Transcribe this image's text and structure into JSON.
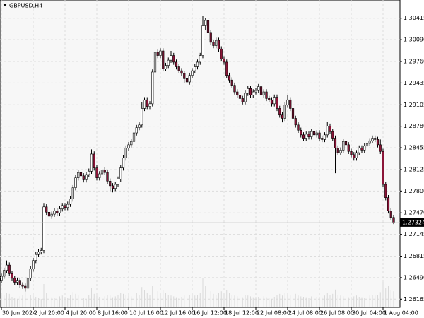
{
  "chart_data": {
    "type": "candlestick",
    "title": "GBPUSD,H4",
    "last_price": 1.27324,
    "ylim": [
      1.2604,
      1.3069
    ],
    "yticks": [
      1.30415,
      {
        "value": 1.3009,
        "label": "1.30090"
      },
      {
        "value": 1.2976,
        "label": "1.29760"
      },
      1.29435,
      1.29105,
      {
        "value": 1.2878,
        "label": "1.28780"
      },
      1.28455,
      1.28125,
      {
        "value": 1.278,
        "label": "1.27800"
      },
      {
        "value": 1.2747,
        "label": "1.27470"
      },
      1.27145,
      1.26815,
      {
        "value": 1.2649,
        "label": "1.26490"
      },
      1.26165
    ],
    "xticks": [
      {
        "value": 0,
        "label": "30 Jun 2024"
      },
      {
        "value": 12,
        "label": "2 Jul 20:00"
      },
      {
        "value": 24,
        "label": "4 Jul 20:00"
      },
      {
        "value": 36,
        "label": "8 Jul 16:00"
      },
      {
        "value": 48,
        "label": "10 Jul 16:00"
      },
      {
        "value": 60,
        "label": "12 Jul 16:00"
      },
      {
        "value": 72,
        "label": "16 Jul 12:00"
      },
      {
        "value": 84,
        "label": "18 Jul 12:00"
      },
      {
        "value": 96,
        "label": "22 Jul 08:00"
      },
      {
        "value": 108,
        "label": "24 Jul 08:00"
      },
      {
        "value": 120,
        "label": "26 Jul 08:00"
      },
      {
        "value": 132,
        "label": "30 Jul 04:00"
      },
      {
        "value": 144,
        "label": "1 Aug 04:00"
      }
    ],
    "up_color": "#ffffff",
    "down_color": "#8b1538",
    "outline": "#000000",
    "volume_color": "#d9d9d9",
    "grid": true,
    "vlim": [
      0,
      100
    ],
    "ohlc": [
      [
        1.2645,
        1.2655,
        1.2641,
        1.2651
      ],
      [
        1.2651,
        1.2664,
        1.2647,
        1.266
      ],
      [
        1.266,
        1.2675,
        1.2656,
        1.2668
      ],
      [
        1.2668,
        1.2672,
        1.2651,
        1.2655
      ],
      [
        1.2655,
        1.2659,
        1.2644,
        1.2648
      ],
      [
        1.2648,
        1.2652,
        1.2638,
        1.2642
      ],
      [
        1.2642,
        1.2649,
        1.2638,
        1.2645
      ],
      [
        1.2645,
        1.2649,
        1.2634,
        1.2638
      ],
      [
        1.2638,
        1.2642,
        1.2632,
        1.2636
      ],
      [
        1.2636,
        1.264,
        1.2628,
        1.2633
      ],
      [
        1.2633,
        1.2652,
        1.2629,
        1.2648
      ],
      [
        1.2648,
        1.2666,
        1.2644,
        1.2662
      ],
      [
        1.2662,
        1.2679,
        1.2658,
        1.2675
      ],
      [
        1.2675,
        1.2688,
        1.2671,
        1.2684
      ],
      [
        1.2684,
        1.2692,
        1.268,
        1.2688
      ],
      [
        1.2688,
        1.2694,
        1.2684,
        1.269
      ],
      [
        1.269,
        1.2762,
        1.2686,
        1.2756
      ],
      [
        1.2756,
        1.276,
        1.2744,
        1.2748
      ],
      [
        1.2748,
        1.2752,
        1.2738,
        1.2742
      ],
      [
        1.2742,
        1.2749,
        1.2738,
        1.2745
      ],
      [
        1.2745,
        1.2754,
        1.2741,
        1.275
      ],
      [
        1.275,
        1.2754,
        1.2743,
        1.2747
      ],
      [
        1.2747,
        1.2757,
        1.2743,
        1.2753
      ],
      [
        1.2753,
        1.2762,
        1.2749,
        1.2758
      ],
      [
        1.2758,
        1.2762,
        1.2751,
        1.2755
      ],
      [
        1.2755,
        1.2764,
        1.2751,
        1.276
      ],
      [
        1.276,
        1.2772,
        1.2756,
        1.2768
      ],
      [
        1.2768,
        1.2789,
        1.2764,
        1.2785
      ],
      [
        1.2785,
        1.2804,
        1.2781,
        1.28
      ],
      [
        1.28,
        1.2812,
        1.2796,
        1.2808
      ],
      [
        1.2808,
        1.2812,
        1.2799,
        1.2803
      ],
      [
        1.2803,
        1.2807,
        1.2793,
        1.2797
      ],
      [
        1.2797,
        1.2809,
        1.2793,
        1.2805
      ],
      [
        1.2805,
        1.2814,
        1.2801,
        1.281
      ],
      [
        1.281,
        1.2843,
        1.2806,
        1.2836
      ],
      [
        1.2836,
        1.284,
        1.2811,
        1.2815
      ],
      [
        1.2815,
        1.2819,
        1.2796,
        1.28
      ],
      [
        1.28,
        1.281,
        1.2796,
        1.2806
      ],
      [
        1.2806,
        1.2816,
        1.2802,
        1.2812
      ],
      [
        1.2812,
        1.2816,
        1.2804,
        1.2808
      ],
      [
        1.2808,
        1.2812,
        1.2791,
        1.2795
      ],
      [
        1.2795,
        1.2799,
        1.278,
        1.2788
      ],
      [
        1.2788,
        1.2792,
        1.2778,
        1.2784
      ],
      [
        1.2784,
        1.2794,
        1.278,
        1.279
      ],
      [
        1.279,
        1.2802,
        1.2786,
        1.2798
      ],
      [
        1.2798,
        1.2819,
        1.2794,
        1.2815
      ],
      [
        1.2815,
        1.2834,
        1.2811,
        1.283
      ],
      [
        1.283,
        1.2849,
        1.2826,
        1.2845
      ],
      [
        1.2845,
        1.2854,
        1.2841,
        1.285
      ],
      [
        1.285,
        1.2859,
        1.2846,
        1.2855
      ],
      [
        1.2855,
        1.2872,
        1.2851,
        1.2868
      ],
      [
        1.2868,
        1.288,
        1.2864,
        1.2876
      ],
      [
        1.2876,
        1.2884,
        1.2872,
        1.288
      ],
      [
        1.288,
        1.2915,
        1.2876,
        1.2905
      ],
      [
        1.2905,
        1.2922,
        1.2901,
        1.2918
      ],
      [
        1.2918,
        1.2922,
        1.2904,
        1.2908
      ],
      [
        1.2908,
        1.2916,
        1.2904,
        1.2912
      ],
      [
        1.2912,
        1.2964,
        1.2908,
        1.296
      ],
      [
        1.296,
        1.2994,
        1.2956,
        1.299
      ],
      [
        1.299,
        1.2994,
        1.2981,
        1.2985
      ],
      [
        1.2985,
        1.2996,
        1.2981,
        1.2992
      ],
      [
        1.2992,
        1.2996,
        1.2961,
        1.2965
      ],
      [
        1.2965,
        1.2974,
        1.2961,
        1.297
      ],
      [
        1.297,
        1.2982,
        1.2966,
        1.2978
      ],
      [
        1.2978,
        1.2992,
        1.2974,
        1.2985
      ],
      [
        1.2985,
        1.2989,
        1.2971,
        1.2975
      ],
      [
        1.2975,
        1.2979,
        1.2964,
        1.2968
      ],
      [
        1.2968,
        1.2972,
        1.2958,
        1.2962
      ],
      [
        1.2962,
        1.2966,
        1.2954,
        1.2958
      ],
      [
        1.2958,
        1.2962,
        1.2944,
        1.295
      ],
      [
        1.295,
        1.2954,
        1.294,
        1.2945
      ],
      [
        1.2945,
        1.2959,
        1.2941,
        1.2955
      ],
      [
        1.2955,
        1.2966,
        1.2951,
        1.2962
      ],
      [
        1.2962,
        1.2972,
        1.2958,
        1.2968
      ],
      [
        1.2968,
        1.2979,
        1.2964,
        1.2975
      ],
      [
        1.2975,
        1.2989,
        1.2971,
        1.2985
      ],
      [
        1.2985,
        1.3045,
        1.2981,
        1.303
      ],
      [
        1.303,
        1.3042,
        1.3024,
        1.3038
      ],
      [
        1.3038,
        1.3042,
        1.3016,
        1.302
      ],
      [
        1.302,
        1.3024,
        1.3001,
        1.3005
      ],
      [
        1.3005,
        1.3009,
        1.2996,
        1.3
      ],
      [
        1.3,
        1.3012,
        1.2996,
        1.3008
      ],
      [
        1.3008,
        1.3012,
        1.2991,
        1.2995
      ],
      [
        1.2995,
        1.2999,
        1.2976,
        1.298
      ],
      [
        1.298,
        1.2984,
        1.2971,
        1.2975
      ],
      [
        1.2975,
        1.2979,
        1.2951,
        1.2955
      ],
      [
        1.2955,
        1.2959,
        1.2944,
        1.2948
      ],
      [
        1.2948,
        1.2952,
        1.2936,
        1.294
      ],
      [
        1.294,
        1.2944,
        1.2926,
        1.293
      ],
      [
        1.293,
        1.2934,
        1.2921,
        1.2925
      ],
      [
        1.2925,
        1.2929,
        1.2916,
        1.292
      ],
      [
        1.292,
        1.2924,
        1.2911,
        1.2915
      ],
      [
        1.2915,
        1.2932,
        1.2911,
        1.2928
      ],
      [
        1.2928,
        1.2939,
        1.2924,
        1.2935
      ],
      [
        1.2935,
        1.2939,
        1.2921,
        1.2925
      ],
      [
        1.2925,
        1.2934,
        1.2921,
        1.293
      ],
      [
        1.293,
        1.2936,
        1.2926,
        1.2932
      ],
      [
        1.2932,
        1.2942,
        1.2928,
        1.2938
      ],
      [
        1.2938,
        1.2942,
        1.2921,
        1.2925
      ],
      [
        1.2925,
        1.2934,
        1.2921,
        1.293
      ],
      [
        1.293,
        1.2934,
        1.2916,
        1.292
      ],
      [
        1.292,
        1.2924,
        1.2914,
        1.2918
      ],
      [
        1.2918,
        1.2922,
        1.2908,
        1.2912
      ],
      [
        1.2912,
        1.2926,
        1.2908,
        1.2922
      ],
      [
        1.2922,
        1.2926,
        1.2901,
        1.2905
      ],
      [
        1.2905,
        1.2909,
        1.2891,
        1.2895
      ],
      [
        1.2895,
        1.2899,
        1.2884,
        1.289
      ],
      [
        1.289,
        1.2914,
        1.2886,
        1.291
      ],
      [
        1.291,
        1.2925,
        1.2906,
        1.2918
      ],
      [
        1.2918,
        1.2922,
        1.2901,
        1.2905
      ],
      [
        1.2905,
        1.2909,
        1.2886,
        1.289
      ],
      [
        1.289,
        1.2894,
        1.2876,
        1.288
      ],
      [
        1.288,
        1.2884,
        1.2868,
        1.2872
      ],
      [
        1.2872,
        1.2876,
        1.2861,
        1.2865
      ],
      [
        1.2865,
        1.2869,
        1.2856,
        1.286
      ],
      [
        1.286,
        1.287,
        1.2856,
        1.2866
      ],
      [
        1.2866,
        1.287,
        1.2858,
        1.2862
      ],
      [
        1.2862,
        1.2874,
        1.2858,
        1.287
      ],
      [
        1.287,
        1.2874,
        1.2861,
        1.2865
      ],
      [
        1.2865,
        1.2872,
        1.2861,
        1.2868
      ],
      [
        1.2868,
        1.2872,
        1.2856,
        1.286
      ],
      [
        1.286,
        1.2864,
        1.2854,
        1.2858
      ],
      [
        1.2858,
        1.2869,
        1.2854,
        1.2865
      ],
      [
        1.2865,
        1.2885,
        1.2861,
        1.2878
      ],
      [
        1.2878,
        1.2882,
        1.2866,
        1.287
      ],
      [
        1.287,
        1.2874,
        1.2856,
        1.286
      ],
      [
        1.286,
        1.2864,
        1.2807,
        1.2845
      ],
      [
        1.2845,
        1.2849,
        1.2834,
        1.2838
      ],
      [
        1.2838,
        1.2846,
        1.2834,
        1.2842
      ],
      [
        1.2842,
        1.2859,
        1.2838,
        1.2855
      ],
      [
        1.2855,
        1.2859,
        1.2846,
        1.285
      ],
      [
        1.285,
        1.2854,
        1.2836,
        1.284
      ],
      [
        1.284,
        1.2844,
        1.2831,
        1.2835
      ],
      [
        1.2835,
        1.2839,
        1.2826,
        1.283
      ],
      [
        1.283,
        1.2842,
        1.2826,
        1.2838
      ],
      [
        1.2838,
        1.2849,
        1.2834,
        1.2845
      ],
      [
        1.2845,
        1.2849,
        1.2838,
        1.2842
      ],
      [
        1.2842,
        1.2852,
        1.2838,
        1.2848
      ],
      [
        1.2848,
        1.2856,
        1.2844,
        1.2852
      ],
      [
        1.2852,
        1.286,
        1.2848,
        1.2856
      ],
      [
        1.2856,
        1.2864,
        1.2852,
        1.286
      ],
      [
        1.286,
        1.2864,
        1.2854,
        1.2858
      ],
      [
        1.2858,
        1.2862,
        1.2846,
        1.285
      ],
      [
        1.285,
        1.2858,
        1.2836,
        1.284
      ],
      [
        1.284,
        1.2844,
        1.2786,
        1.279
      ],
      [
        1.279,
        1.2794,
        1.2766,
        1.277
      ],
      [
        1.277,
        1.2774,
        1.2746,
        1.275
      ],
      [
        1.275,
        1.2754,
        1.2736,
        1.274
      ],
      [
        1.274,
        1.2744,
        1.273,
        1.27324
      ]
    ],
    "volume": [
      30,
      28,
      35,
      32,
      25,
      22,
      20,
      26,
      30,
      38,
      34,
      30,
      28,
      25,
      22,
      20,
      55,
      35,
      28,
      24,
      22,
      20,
      26,
      28,
      25,
      22,
      30,
      36,
      32,
      28,
      25,
      22,
      20,
      30,
      45,
      32,
      28,
      25,
      22,
      26,
      30,
      28,
      24,
      26,
      30,
      34,
      32,
      30,
      28,
      26,
      32,
      35,
      30,
      48,
      40,
      35,
      30,
      50,
      45,
      38,
      32,
      40,
      35,
      30,
      28,
      26,
      24,
      22,
      25,
      28,
      26,
      30,
      32,
      28,
      30,
      35,
      70,
      50,
      42,
      38,
      32,
      30,
      35,
      38,
      32,
      40,
      35,
      30,
      28,
      26,
      25,
      24,
      30,
      28,
      26,
      24,
      22,
      25,
      28,
      26,
      24,
      22,
      20,
      25,
      30,
      32,
      28,
      34,
      30,
      28,
      30,
      32,
      28,
      26,
      25,
      24,
      22,
      26,
      28,
      25,
      22,
      24,
      28,
      35,
      30,
      32,
      42,
      30,
      28,
      26,
      25,
      24,
      22,
      26,
      28,
      25,
      24,
      22,
      26,
      28,
      30,
      28,
      30,
      36,
      60,
      45,
      50,
      40,
      38
    ]
  }
}
